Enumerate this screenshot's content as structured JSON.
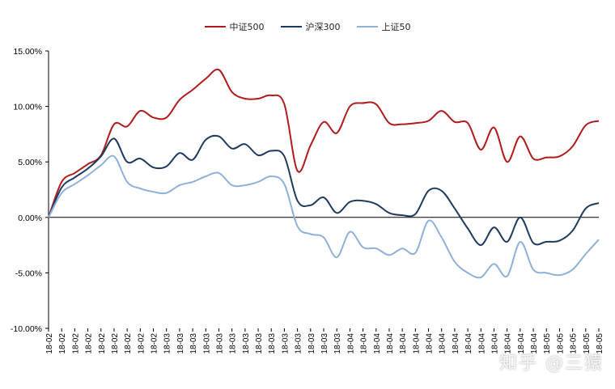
{
  "chart_data": {
    "type": "line",
    "title": "",
    "xlabel": "",
    "ylabel": "",
    "ylim": [
      -0.1,
      0.15
    ],
    "yticks": [
      -0.1,
      -0.05,
      0.0,
      0.05,
      0.1,
      0.15
    ],
    "ytick_labels": [
      "-10.00%",
      "-5.00%",
      "0.00%",
      "5.00%",
      "10.00%",
      "15.00%"
    ],
    "x": [
      "18-02",
      "18-02",
      "18-02",
      "18-02",
      "18-02",
      "18-02",
      "18-02",
      "18-02",
      "18-02",
      "18-03",
      "18-03",
      "18-03",
      "18-03",
      "18-03",
      "18-03",
      "18-03",
      "18-03",
      "18-03",
      "18-03",
      "18-03",
      "18-03",
      "18-03",
      "18-03",
      "18-04",
      "18-04",
      "18-04",
      "18-04",
      "18-04",
      "18-04",
      "18-04",
      "18-04",
      "18-04",
      "18-04",
      "18-04",
      "18-04",
      "18-04",
      "18-04",
      "18-04",
      "18-05",
      "18-05",
      "18-05",
      "18-05",
      "18-05"
    ],
    "legend_position": "top",
    "series": [
      {
        "name": "中证500",
        "color": "#b01c1c",
        "values": [
          0.0,
          0.032,
          0.04,
          0.048,
          0.056,
          0.084,
          0.082,
          0.096,
          0.09,
          0.09,
          0.106,
          0.115,
          0.125,
          0.133,
          0.113,
          0.107,
          0.107,
          0.11,
          0.102,
          0.042,
          0.065,
          0.086,
          0.076,
          0.1,
          0.103,
          0.102,
          0.085,
          0.084,
          0.085,
          0.087,
          0.096,
          0.086,
          0.085,
          0.061,
          0.081,
          0.05,
          0.073,
          0.053,
          0.054,
          0.055,
          0.064,
          0.083,
          0.087
        ]
      },
      {
        "name": "沪深300",
        "color": "#1f3a5f",
        "values": [
          0.0,
          0.027,
          0.036,
          0.044,
          0.055,
          0.071,
          0.05,
          0.053,
          0.045,
          0.046,
          0.058,
          0.052,
          0.07,
          0.073,
          0.062,
          0.066,
          0.056,
          0.06,
          0.055,
          0.015,
          0.011,
          0.018,
          0.004,
          0.014,
          0.015,
          0.012,
          0.004,
          0.002,
          0.003,
          0.024,
          0.024,
          0.008,
          -0.01,
          -0.025,
          -0.009,
          -0.022,
          0.0,
          -0.023,
          -0.022,
          -0.021,
          -0.012,
          0.008,
          0.013
        ]
      },
      {
        "name": "上证50",
        "color": "#8fb0d8",
        "values": [
          0.0,
          0.022,
          0.03,
          0.038,
          0.047,
          0.055,
          0.032,
          0.026,
          0.023,
          0.022,
          0.029,
          0.032,
          0.037,
          0.04,
          0.029,
          0.029,
          0.032,
          0.037,
          0.03,
          -0.008,
          -0.015,
          -0.018,
          -0.036,
          -0.013,
          -0.027,
          -0.028,
          -0.034,
          -0.028,
          -0.032,
          -0.003,
          -0.018,
          -0.04,
          -0.05,
          -0.054,
          -0.042,
          -0.053,
          -0.022,
          -0.047,
          -0.05,
          -0.052,
          -0.047,
          -0.033,
          -0.02
        ]
      }
    ]
  },
  "watermark": "知乎 @三猿"
}
